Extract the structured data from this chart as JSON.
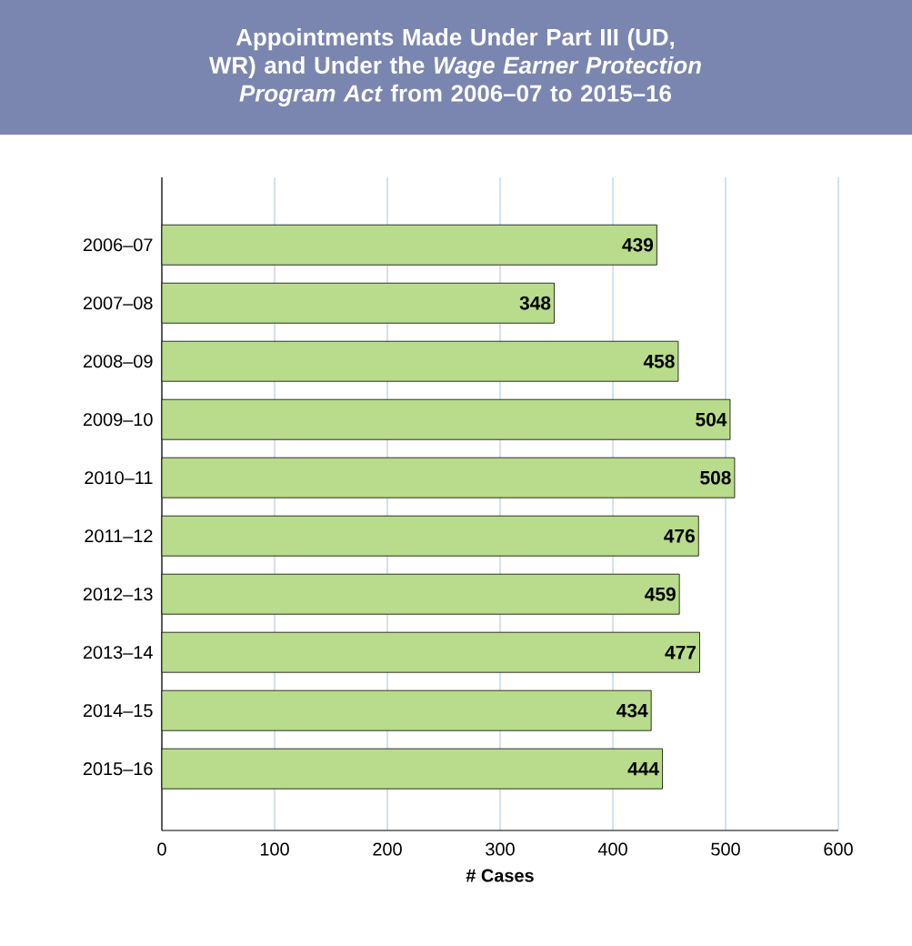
{
  "chart_data": {
    "type": "bar",
    "orientation": "horizontal",
    "title": "Appointments Made Under Part III (UD, WR) and Under the *Wage Earner Protection Program Act* from 2006–07 to 2015–16",
    "xlabel": "# Cases",
    "categories": [
      "2006–07",
      "2007–08",
      "2008–09",
      "2009–10",
      "2010–11",
      "2011–12",
      "2012–13",
      "2013–14",
      "2014–15",
      "2015–16"
    ],
    "values": [
      439,
      348,
      458,
      504,
      508,
      476,
      459,
      477,
      434,
      444
    ],
    "color": "#b9dc8c",
    "xlim": [
      0,
      600
    ],
    "xticks": [
      0,
      100,
      200,
      300,
      400,
      500,
      600
    ],
    "grid": "x",
    "data_labels": true
  }
}
